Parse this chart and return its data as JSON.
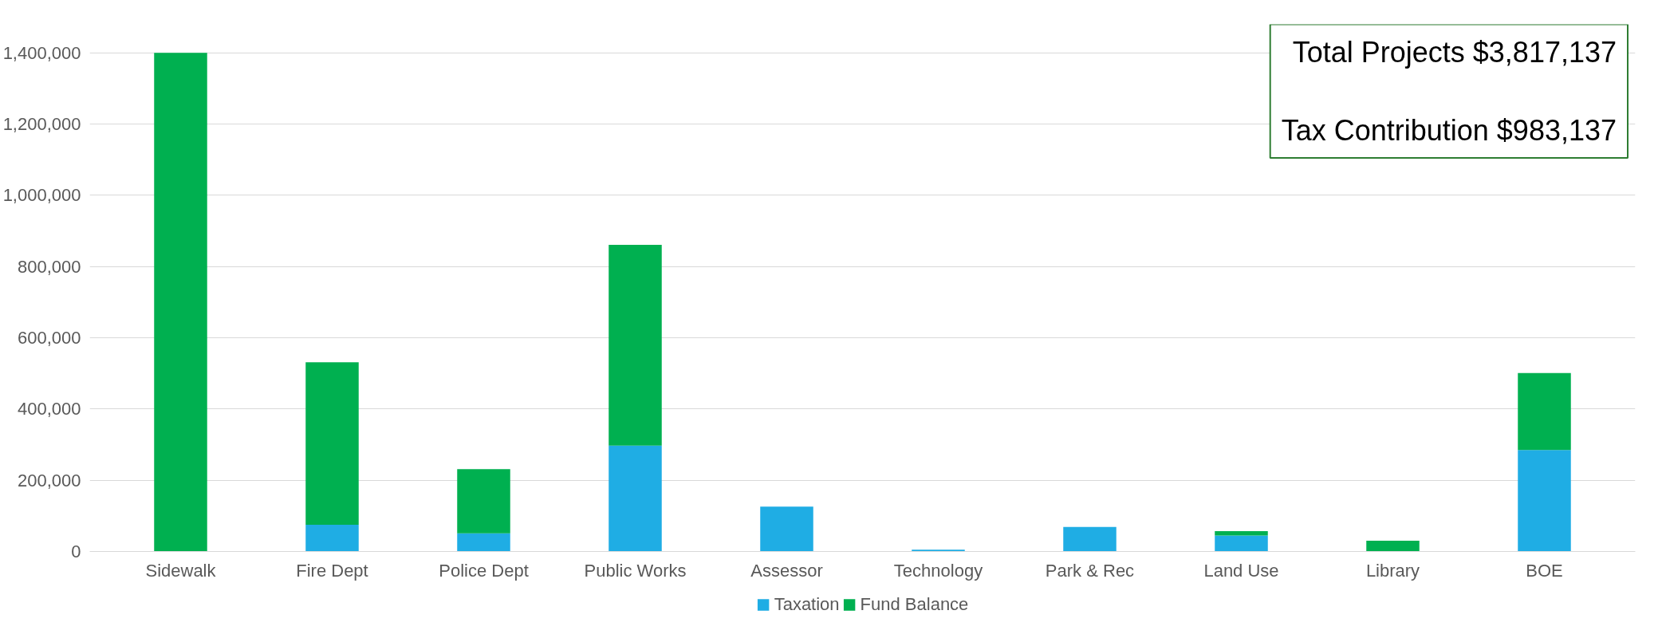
{
  "chart_data": {
    "type": "bar",
    "stacked": true,
    "categories": [
      "Sidewalk",
      "Fire Dept",
      "Police Dept",
      "Public Works",
      "Assessor",
      "Technology",
      "Park & Rec",
      "Land Use",
      "Library",
      "BOE"
    ],
    "series": [
      {
        "name": "Taxation",
        "color": "#1fade4",
        "values": [
          0,
          75000,
          51000,
          297000,
          126000,
          5000,
          69000,
          45000,
          0,
          285000
        ]
      },
      {
        "name": "Fund Balance",
        "color": "#00b050",
        "values": [
          1400000,
          456000,
          180000,
          564000,
          0,
          0,
          0,
          12000,
          30000,
          216000
        ]
      }
    ],
    "ylim": [
      0,
      1480000
    ],
    "yticks": [
      {
        "value": 0,
        "label": "0"
      },
      {
        "value": 200000,
        "label": "200,000"
      },
      {
        "value": 400000,
        "label": "400,000"
      },
      {
        "value": 600000,
        "label": "600,000"
      },
      {
        "value": 800000,
        "label": "800,000"
      },
      {
        "value": 1000000,
        "label": "1,000,000"
      },
      {
        "value": 1200000,
        "label": "1,200,000"
      },
      {
        "value": 1400000,
        "label": "1,400,000"
      }
    ],
    "grid": "y",
    "legend": "bottom",
    "annotations": [
      "Total Projects $3,817,137",
      "Tax Contribution $983,137"
    ]
  }
}
